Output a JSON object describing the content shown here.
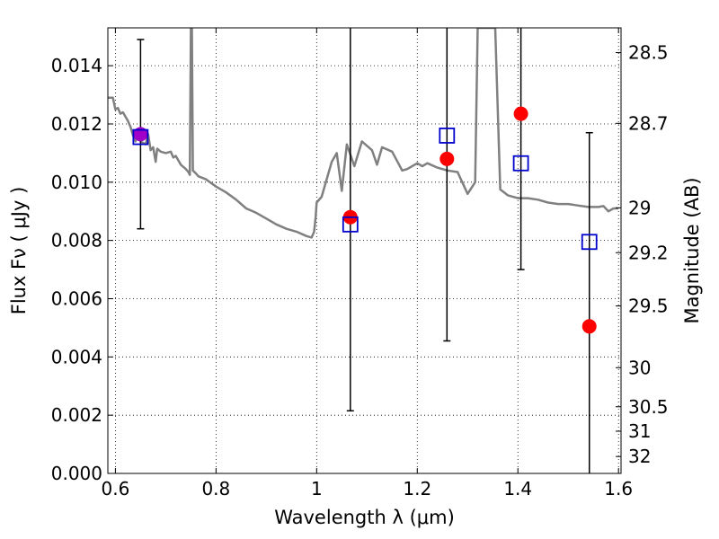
{
  "chart_data": {
    "type": "scatter",
    "xlabel": "Wavelength  λ (μm)",
    "ylabel": "Flux  Fν  ( μJy )",
    "ylabel_right": "Magnitude (AB)",
    "xlim": [
      0.585,
      1.605
    ],
    "ylim": [
      0.0,
      0.0153
    ],
    "grid": true,
    "x_ticks": [
      {
        "value": 0.6,
        "label": "0.6"
      },
      {
        "value": 0.8,
        "label": "0.8"
      },
      {
        "value": 1.0,
        "label": "1"
      },
      {
        "value": 1.2,
        "label": "1.2"
      },
      {
        "value": 1.4,
        "label": "1.4"
      },
      {
        "value": 1.6,
        "label": "1.6"
      }
    ],
    "y_ticks": [
      {
        "value": 0.0,
        "label": "0.000"
      },
      {
        "value": 0.002,
        "label": "0.002"
      },
      {
        "value": 0.004,
        "label": "0.004"
      },
      {
        "value": 0.006,
        "label": "0.006"
      },
      {
        "value": 0.008,
        "label": "0.008"
      },
      {
        "value": 0.01,
        "label": "0.010"
      },
      {
        "value": 0.012,
        "label": "0.012"
      },
      {
        "value": 0.014,
        "label": "0.014"
      }
    ],
    "right_ticks": [
      {
        "flux": 0.01445,
        "label": "28.5"
      },
      {
        "flux": 0.01202,
        "label": "28.7"
      },
      {
        "flux": 0.00912,
        "label": "29"
      },
      {
        "flux": 0.00758,
        "label": "29.2"
      },
      {
        "flux": 0.00575,
        "label": "29.5"
      },
      {
        "flux": 0.00363,
        "label": "30"
      },
      {
        "flux": 0.00229,
        "label": "30.5"
      },
      {
        "flux": 0.00145,
        "label": "31"
      },
      {
        "flux": 0.00058,
        "label": "32"
      }
    ],
    "model_color": "#808080",
    "model_spectrum": [
      [
        0.585,
        0.0129
      ],
      [
        0.595,
        0.0129
      ],
      [
        0.6,
        0.0125
      ],
      [
        0.605,
        0.01255
      ],
      [
        0.61,
        0.01235
      ],
      [
        0.615,
        0.0124
      ],
      [
        0.62,
        0.01225
      ],
      [
        0.625,
        0.0121
      ],
      [
        0.63,
        0.0119
      ],
      [
        0.635,
        0.0116
      ],
      [
        0.64,
        0.0114
      ],
      [
        0.645,
        0.0117
      ],
      [
        0.65,
        0.0114
      ],
      [
        0.66,
        0.0113
      ],
      [
        0.665,
        0.01165
      ],
      [
        0.67,
        0.0111
      ],
      [
        0.675,
        0.0112
      ],
      [
        0.68,
        0.0107
      ],
      [
        0.683,
        0.01115
      ],
      [
        0.69,
        0.01105
      ],
      [
        0.7,
        0.011
      ],
      [
        0.71,
        0.01105
      ],
      [
        0.715,
        0.01085
      ],
      [
        0.72,
        0.0109
      ],
      [
        0.73,
        0.0106
      ],
      [
        0.74,
        0.01045
      ],
      [
        0.745,
        0.01035
      ],
      [
        0.748,
        0.01025
      ],
      [
        0.75,
        0.0153
      ],
      [
        0.752,
        0.0153
      ],
      [
        0.754,
        0.0104
      ],
      [
        0.76,
        0.0103
      ],
      [
        0.765,
        0.0102
      ],
      [
        0.78,
        0.0101
      ],
      [
        0.8,
        0.00985
      ],
      [
        0.82,
        0.00965
      ],
      [
        0.84,
        0.0094
      ],
      [
        0.86,
        0.0091
      ],
      [
        0.88,
        0.00895
      ],
      [
        0.9,
        0.00875
      ],
      [
        0.92,
        0.00855
      ],
      [
        0.94,
        0.0084
      ],
      [
        0.96,
        0.0083
      ],
      [
        0.98,
        0.00815
      ],
      [
        0.99,
        0.0081
      ],
      [
        0.995,
        0.0083
      ],
      [
        0.998,
        0.0088
      ],
      [
        1.0,
        0.0093
      ],
      [
        1.01,
        0.0095
      ],
      [
        1.03,
        0.0107
      ],
      [
        1.04,
        0.011
      ],
      [
        1.05,
        0.0097
      ],
      [
        1.06,
        0.0113
      ],
      [
        1.075,
        0.01055
      ],
      [
        1.09,
        0.0114
      ],
      [
        1.1,
        0.01125
      ],
      [
        1.11,
        0.0111
      ],
      [
        1.12,
        0.0106
      ],
      [
        1.13,
        0.0112
      ],
      [
        1.15,
        0.01105
      ],
      [
        1.17,
        0.0104
      ],
      [
        1.18,
        0.01045
      ],
      [
        1.2,
        0.01065
      ],
      [
        1.21,
        0.01055
      ],
      [
        1.22,
        0.01065
      ],
      [
        1.24,
        0.0105
      ],
      [
        1.26,
        0.0104
      ],
      [
        1.28,
        0.01035
      ],
      [
        1.3,
        0.0096
      ],
      [
        1.315,
        0.01
      ],
      [
        1.32,
        0.0153
      ],
      [
        1.355,
        0.0153
      ],
      [
        1.365,
        0.00975
      ],
      [
        1.38,
        0.00955
      ],
      [
        1.4,
        0.00945
      ],
      [
        1.42,
        0.00945
      ],
      [
        1.44,
        0.0094
      ],
      [
        1.46,
        0.0093
      ],
      [
        1.48,
        0.00925
      ],
      [
        1.5,
        0.00925
      ],
      [
        1.52,
        0.0092
      ],
      [
        1.54,
        0.00915
      ],
      [
        1.56,
        0.00915
      ],
      [
        1.57,
        0.00918
      ],
      [
        1.58,
        0.009
      ],
      [
        1.59,
        0.0091
      ],
      [
        1.6,
        0.0091
      ]
    ],
    "observed": {
      "color": "#ff0000",
      "points": [
        {
          "x": 0.65,
          "y": 0.01165,
          "err": 0.00325
        },
        {
          "x": 1.067,
          "y": 0.0088,
          "err": 0.00665
        },
        {
          "x": 1.259,
          "y": 0.0108,
          "err": 0.00625
        },
        {
          "x": 1.406,
          "y": 0.01235,
          "err": 0.00535
        },
        {
          "x": 1.542,
          "y": 0.00505,
          "err": 0.00665
        }
      ]
    },
    "model_photometry": {
      "color": "#0000cc",
      "points": [
        {
          "x": 0.65,
          "y": 0.01155
        },
        {
          "x": 1.067,
          "y": 0.00855
        },
        {
          "x": 1.259,
          "y": 0.0116
        },
        {
          "x": 1.406,
          "y": 0.01065
        },
        {
          "x": 1.542,
          "y": 0.00795
        }
      ]
    },
    "overlap_color": "#a000c8"
  }
}
